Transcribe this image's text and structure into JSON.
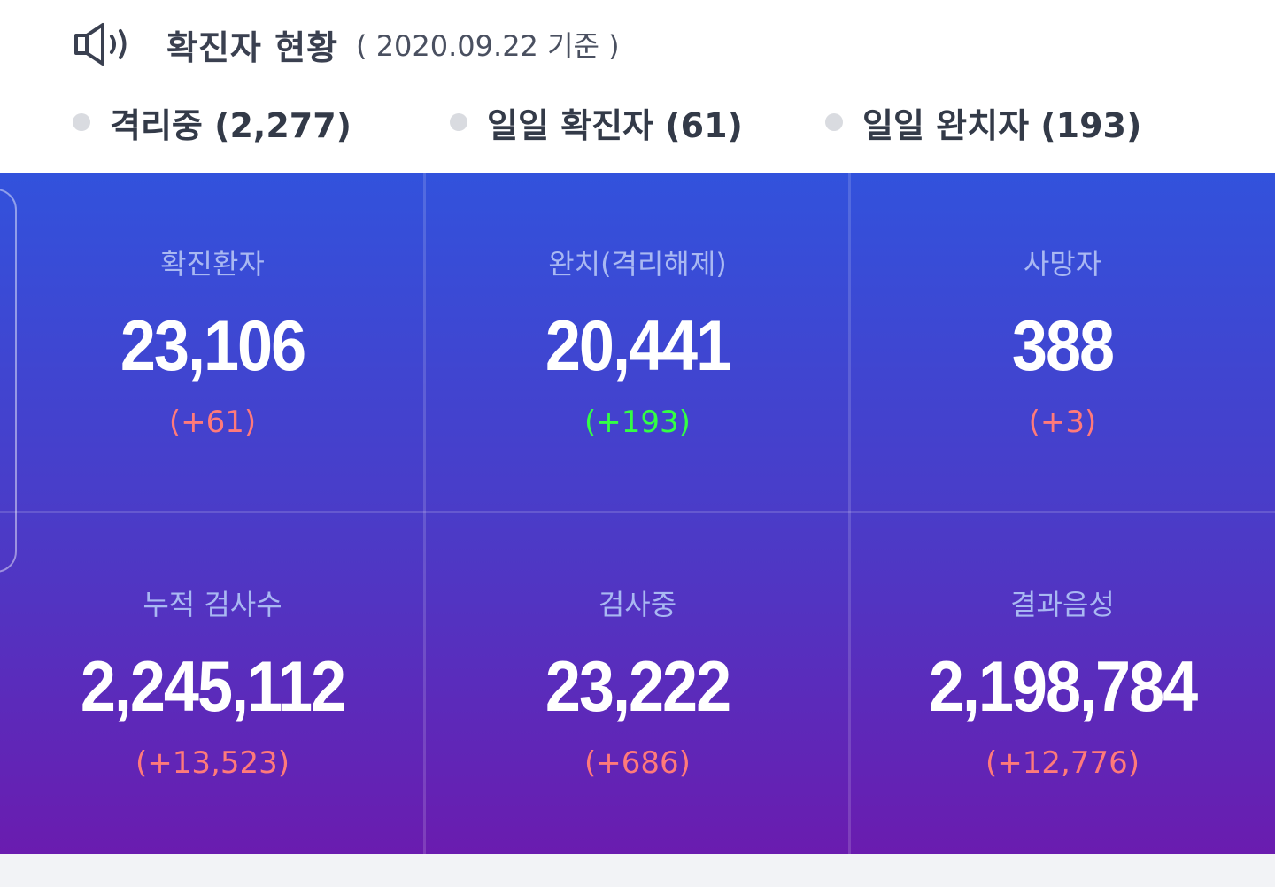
{
  "header": {
    "icon": "speaker-icon",
    "title": "확진자 현황",
    "date": "( 2020.09.22 기준 )"
  },
  "summary": [
    {
      "label": "격리중 (2,277)"
    },
    {
      "label": "일일 확진자 (61)"
    },
    {
      "label": "일일 완치자 (193)"
    }
  ],
  "stats": [
    {
      "label": "확진환자",
      "value": "23,106",
      "delta": "(+61)",
      "delta_color": "#ff7a7a"
    },
    {
      "label": "완치(격리해제)",
      "value": "20,441",
      "delta": "(+193)",
      "delta_color": "#33ff44"
    },
    {
      "label": "사망자",
      "value": "388",
      "delta": "(+3)",
      "delta_color": "#ff7a7a"
    },
    {
      "label": "누적 검사수",
      "value": "2,245,112",
      "delta": "(+13,523)",
      "delta_color": "#ff7a7a"
    },
    {
      "label": "검사중",
      "value": "23,222",
      "delta": "(+686)",
      "delta_color": "#ff7a7a"
    },
    {
      "label": "결과음성",
      "value": "2,198,784",
      "delta": "(+12,776)",
      "delta_color": "#ff7a7a"
    }
  ],
  "colors": {
    "panel_top": "#3252dc",
    "panel_bottom": "#6a1caf",
    "label": "#a9b8f2"
  }
}
